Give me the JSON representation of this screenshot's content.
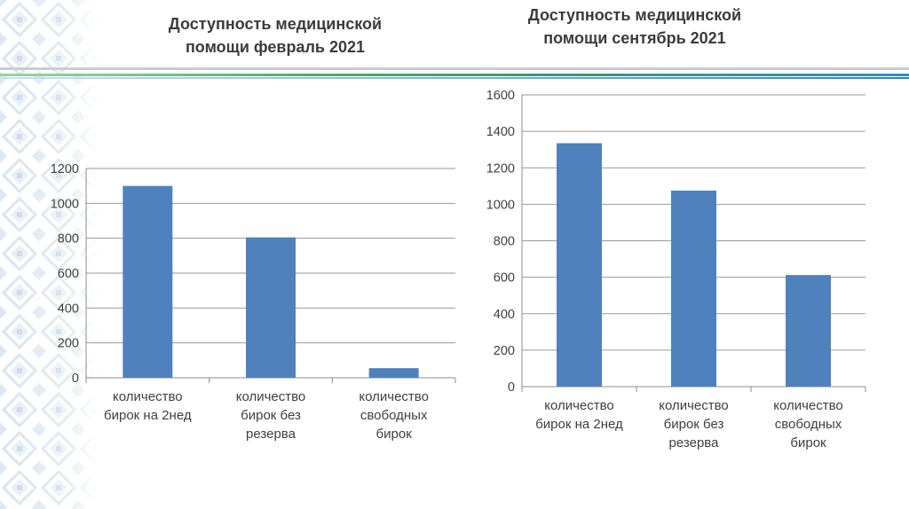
{
  "chart_data": [
    {
      "type": "bar",
      "title": "Доступность медицинской помощи февраль 2021",
      "title_lines": [
        "Доступность медицинской",
        "помощи февраль 2021"
      ],
      "categories": [
        "количество бирок на 2нед",
        "количество бирок без резерва",
        "количество свободных бирок"
      ],
      "category_lines": [
        [
          "количество",
          "бирок на 2нед"
        ],
        [
          "количество",
          "бирок без",
          "резерва"
        ],
        [
          "количество",
          "свободных",
          "бирок"
        ]
      ],
      "values": [
        1100,
        805,
        55
      ],
      "ylim": [
        0,
        1200
      ],
      "yticks": [
        "0",
        "200",
        "400",
        "600",
        "800",
        "1000",
        "1200"
      ],
      "grid": true,
      "bar_color": "#4f81bd"
    },
    {
      "type": "bar",
      "title": "Доступность медицинской помощи сентябрь 2021",
      "title_lines": [
        "Доступность медицинской",
        "помощи сентябрь 2021"
      ],
      "categories": [
        "количество бирок на 2нед",
        "количество бирок без резерва",
        "количество свободных бирок"
      ],
      "category_lines": [
        [
          "количество",
          "бирок на 2нед"
        ],
        [
          "количество",
          "бирок без",
          "резерва"
        ],
        [
          "количество",
          "свободных",
          "бирок"
        ]
      ],
      "values": [
        1335,
        1075,
        612
      ],
      "ylim": [
        0,
        1600
      ],
      "yticks": [
        "0",
        "200",
        "400",
        "600",
        "800",
        "1000",
        "1200",
        "1400",
        "1600"
      ],
      "grid": true,
      "bar_color": "#4f81bd"
    }
  ]
}
